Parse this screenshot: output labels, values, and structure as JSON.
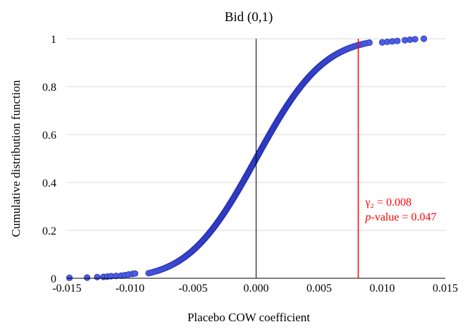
{
  "chart_data": {
    "type": "scatter",
    "title": "Bid (0,1)",
    "xlabel": "Placebo COW coefficient",
    "ylabel": "Cumulative distribution function",
    "xlim": [
      -0.015,
      0.015
    ],
    "ylim": [
      0,
      1
    ],
    "x_ticks": [
      "-0.015",
      "-0.010",
      "-0.005",
      "0.000",
      "0.005",
      "0.010",
      "0.015"
    ],
    "y_ticks": [
      "0",
      "0.2",
      "0.4",
      "0.6",
      "0.8",
      "1"
    ],
    "grid": "horizontal",
    "legend": "none",
    "series_color": "#4a5ee0",
    "series_edge": "#2a33b8",
    "reference_line": {
      "x": 0.0081,
      "color": "#ff0000",
      "gamma_label": "γ₂ = 0.008",
      "pvalue_italic": "p",
      "pvalue_rest": "-value = 0.047"
    },
    "distribution": {
      "mean": 0.0,
      "sd": 0.0042,
      "n": 400,
      "left_tail_points": [
        [
          -0.0148,
          0.002
        ],
        [
          -0.0134,
          0.003
        ],
        [
          -0.0126,
          0.005
        ],
        [
          -0.0121,
          0.006
        ],
        [
          -0.0118,
          0.007
        ],
        [
          -0.0115,
          0.009
        ],
        [
          -0.0111,
          0.01
        ],
        [
          -0.0107,
          0.011
        ],
        [
          -0.0104,
          0.013
        ],
        [
          -0.0101,
          0.016
        ],
        [
          -0.0098,
          0.018
        ],
        [
          -0.0096,
          0.02
        ]
      ],
      "right_tail_points": [
        [
          0.01,
          0.985
        ],
        [
          0.0104,
          0.987
        ],
        [
          0.0108,
          0.989
        ],
        [
          0.0112,
          0.991
        ],
        [
          0.0118,
          0.994
        ],
        [
          0.0122,
          0.996
        ],
        [
          0.0126,
          0.998
        ],
        [
          0.0133,
          1.0
        ]
      ]
    }
  }
}
